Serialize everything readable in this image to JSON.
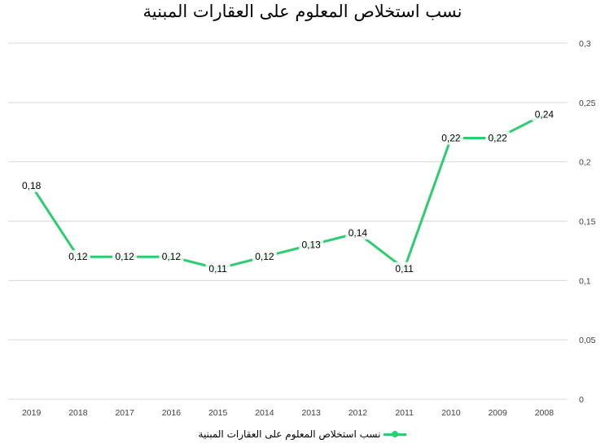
{
  "chart_data": {
    "type": "line",
    "title": "نسب استخلاص المعلوم على العقارات المبنية",
    "categories": [
      "2019",
      "2018",
      "2017",
      "2016",
      "2015",
      "2014",
      "2013",
      "2012",
      "2011",
      "2010",
      "2009",
      "2008"
    ],
    "series": [
      {
        "name": "نسب استخلاص المعلوم على العقارات المبنية",
        "values": [
          0.18,
          0.12,
          0.12,
          0.12,
          0.11,
          0.12,
          0.13,
          0.14,
          0.11,
          0.22,
          0.22,
          0.24
        ],
        "labels": [
          "0,18",
          "0,12",
          "0,12",
          "0,12",
          "0,11",
          "0,12",
          "0,13",
          "0,14",
          "0,11",
          "0,22",
          "0,22",
          "0,24"
        ],
        "color": "#2ecc71"
      }
    ],
    "ylim": [
      0,
      0.3
    ],
    "yticks": [
      "0",
      "0,05",
      "0,1",
      "0,15",
      "0,2",
      "0,25",
      "0,3"
    ],
    "y_axis_side": "right",
    "grid": true,
    "legend_position": "bottom"
  }
}
